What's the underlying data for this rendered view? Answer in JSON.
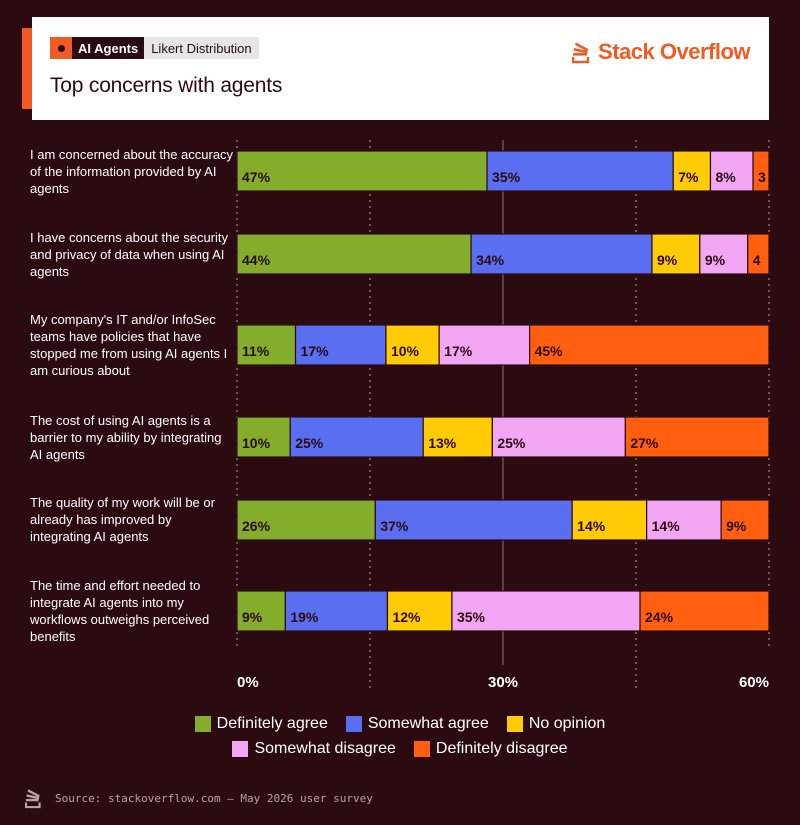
{
  "header": {
    "tag_primary": "AI Agents",
    "tag_secondary": "Likert Distribution",
    "title": "Top concerns with agents",
    "brand": "Stack Overflow"
  },
  "colors": {
    "background": "#2b0b10",
    "accent": "#f15a22"
  },
  "chart_data": {
    "type": "bar",
    "orientation": "horizontal-stacked",
    "categories": [
      "I am concerned about the accuracy of the information provided by AI agents",
      "I have concerns about the security and privacy of data when using AI agents",
      "My company's IT and/or InfoSec teams have policies that have stopped me from using AI agents I am curious about",
      "The cost of using AI agents is a barrier to my ability by integrating AI agents",
      "The quality of my work will be or already has improved by integrating AI agents",
      "The time and effort needed to integrate AI agents into my workflows outweighs perceived benefits"
    ],
    "series": [
      {
        "name": "Definitely agree",
        "color": "#84ad2c",
        "values": [
          47,
          44,
          11,
          10,
          26,
          9
        ],
        "labels": [
          "47%",
          "44%",
          "11%",
          "10%",
          "26%",
          "9%"
        ]
      },
      {
        "name": "Somewhat agree",
        "color": "#5a6ef2",
        "values": [
          35,
          34,
          17,
          25,
          37,
          19
        ],
        "labels": [
          "35%",
          "34%",
          "17%",
          "25%",
          "37%",
          "19%"
        ]
      },
      {
        "name": "No opinion",
        "color": "#ffcb05",
        "values": [
          7,
          9,
          10,
          13,
          14,
          12
        ],
        "labels": [
          "7%",
          "9%",
          "10%",
          "13%",
          "14%",
          "12%"
        ]
      },
      {
        "name": "Somewhat disagree",
        "color": "#f3a6f3",
        "values": [
          8,
          9,
          17,
          25,
          14,
          35
        ],
        "labels": [
          "8%",
          "9%",
          "17%",
          "25%",
          "14%",
          "35%"
        ]
      },
      {
        "name": "Definitely disagree",
        "color": "#ff5f0f",
        "values": [
          3,
          4,
          45,
          27,
          9,
          24
        ],
        "labels": [
          "3",
          "4",
          "45%",
          "27%",
          "9%",
          "24%"
        ]
      }
    ],
    "x_ticks": [
      "0%",
      "30%",
      "60%"
    ],
    "legend_position": "bottom"
  },
  "source": "Source: stackoverflow.com – May 2026 user survey"
}
